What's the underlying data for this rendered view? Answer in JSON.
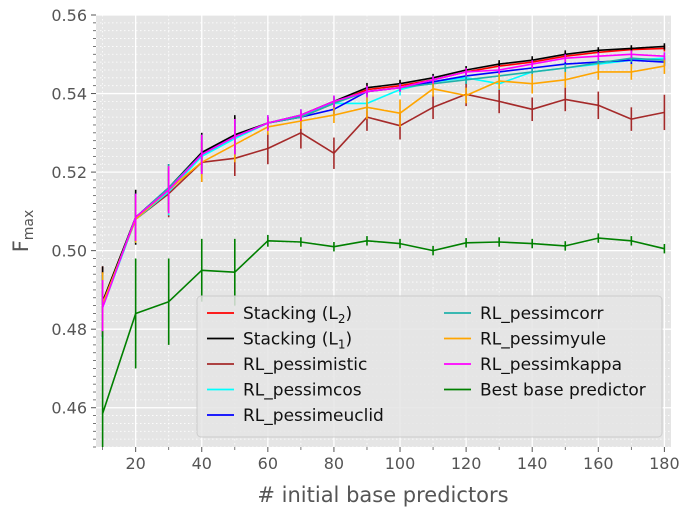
{
  "chart_data": {
    "type": "line",
    "xlabel": "# initial base predictors",
    "ylabel_main": "F",
    "ylabel_sub": "max",
    "xlim": [
      8,
      182
    ],
    "ylim": [
      0.45,
      0.56
    ],
    "xticks": [
      20,
      40,
      60,
      80,
      100,
      120,
      140,
      160,
      180
    ],
    "yticks": [
      0.46,
      0.48,
      0.5,
      0.52,
      0.54,
      0.56
    ],
    "ytick_labels": [
      "0.46",
      "0.48",
      "0.50",
      "0.52",
      "0.54",
      "0.56"
    ],
    "grid": true,
    "legend_position": "lower-right",
    "legend_columns": 2,
    "x": [
      10,
      20,
      30,
      40,
      50,
      60,
      70,
      80,
      90,
      100,
      110,
      120,
      130,
      140,
      150,
      160,
      170,
      180
    ],
    "series": [
      {
        "name": "Stacking (L",
        "name_sub": "2",
        "name_tail": ")",
        "color": "#ff0000",
        "values": [
          0.487,
          0.5085,
          0.5155,
          0.5245,
          0.529,
          0.5325,
          0.534,
          0.5375,
          0.541,
          0.542,
          0.5435,
          0.5455,
          0.547,
          0.548,
          0.5495,
          0.5505,
          0.5512,
          0.5515
        ],
        "errors": [
          0.009,
          0.006,
          0.0055,
          0.005,
          0.005,
          0.0015,
          0.0012,
          0.0012,
          0.0012,
          0.001,
          0.001,
          0.001,
          0.001,
          0.001,
          0.001,
          0.0008,
          0.0008,
          0.0008
        ]
      },
      {
        "name": "Stacking (L",
        "name_sub": "1",
        "name_tail": ")",
        "color": "#000000",
        "values": [
          0.487,
          0.5085,
          0.516,
          0.525,
          0.5295,
          0.5325,
          0.5345,
          0.538,
          0.5415,
          0.5425,
          0.544,
          0.546,
          0.5475,
          0.5485,
          0.55,
          0.551,
          0.5515,
          0.552
        ],
        "errors": [
          0.009,
          0.007,
          0.006,
          0.005,
          0.005,
          0.0015,
          0.0012,
          0.0012,
          0.0012,
          0.001,
          0.001,
          0.001,
          0.001,
          0.001,
          0.001,
          0.0008,
          0.0008,
          0.0008
        ]
      },
      {
        "name": "RL_pessimistic",
        "color": "#a52a2a",
        "values": [
          0.486,
          0.508,
          0.5145,
          0.5225,
          0.5235,
          0.526,
          0.53,
          0.5248,
          0.534,
          0.5318,
          0.5365,
          0.5398,
          0.538,
          0.536,
          0.5385,
          0.537,
          0.5335,
          0.5352
        ],
        "errors": [
          0.008,
          0.006,
          0.006,
          0.005,
          0.0045,
          0.004,
          0.004,
          0.004,
          0.0035,
          0.0035,
          0.003,
          0.003,
          0.003,
          0.003,
          0.003,
          0.0035,
          0.003,
          0.0045
        ]
      },
      {
        "name": "RL_pessimcos",
        "color": "#00ffff",
        "values": [
          0.4855,
          0.508,
          0.515,
          0.524,
          0.5285,
          0.5325,
          0.5345,
          0.5375,
          0.5375,
          0.541,
          0.543,
          0.544,
          0.5425,
          0.5455,
          0.5465,
          0.5475,
          0.5485,
          0.549
        ],
        "errors": [
          0.008,
          0.006,
          0.006,
          0.005,
          0.0045,
          0.002,
          0.0015,
          0.002,
          0.002,
          0.0015,
          0.0015,
          0.0015,
          0.0015,
          0.0015,
          0.0015,
          0.0015,
          0.0015,
          0.0015
        ]
      },
      {
        "name": "RL_pessimeuclid",
        "color": "#0000ff",
        "values": [
          0.486,
          0.5085,
          0.516,
          0.5245,
          0.529,
          0.5325,
          0.534,
          0.536,
          0.5405,
          0.5415,
          0.543,
          0.5445,
          0.5455,
          0.5465,
          0.5475,
          0.548,
          0.5485,
          0.548
        ],
        "errors": [
          0.008,
          0.006,
          0.006,
          0.005,
          0.0045,
          0.0015,
          0.0012,
          0.0012,
          0.0012,
          0.001,
          0.001,
          0.001,
          0.001,
          0.001,
          0.001,
          0.001,
          0.001,
          0.001
        ]
      },
      {
        "name": "RL_pessimcorr",
        "color": "#20b2aa",
        "values": [
          0.486,
          0.5085,
          0.516,
          0.5245,
          0.529,
          0.5325,
          0.534,
          0.5375,
          0.5405,
          0.5415,
          0.5425,
          0.5435,
          0.5445,
          0.5455,
          0.5465,
          0.5478,
          0.549,
          0.5485
        ],
        "errors": [
          0.008,
          0.006,
          0.006,
          0.005,
          0.0045,
          0.0015,
          0.0012,
          0.0012,
          0.0012,
          0.001,
          0.001,
          0.001,
          0.001,
          0.001,
          0.001,
          0.001,
          0.001,
          0.001
        ]
      },
      {
        "name": "RL_pessimyule",
        "color": "#ffa500",
        "values": [
          0.4865,
          0.508,
          0.5155,
          0.5225,
          0.527,
          0.5315,
          0.533,
          0.5345,
          0.5365,
          0.535,
          0.5412,
          0.5395,
          0.5432,
          0.5425,
          0.5435,
          0.5455,
          0.5455,
          0.547
        ],
        "errors": [
          0.008,
          0.006,
          0.006,
          0.005,
          0.0045,
          0.002,
          0.002,
          0.002,
          0.003,
          0.0035,
          0.002,
          0.002,
          0.002,
          0.0025,
          0.002,
          0.002,
          0.002,
          0.002
        ]
      },
      {
        "name": "RL_pessimkappa",
        "color": "#ff00ff",
        "values": [
          0.4855,
          0.5085,
          0.5155,
          0.5245,
          0.529,
          0.5325,
          0.5345,
          0.538,
          0.5405,
          0.5415,
          0.5435,
          0.5455,
          0.546,
          0.5475,
          0.549,
          0.5495,
          0.55,
          0.5495
        ],
        "errors": [
          0.007,
          0.006,
          0.006,
          0.005,
          0.0045,
          0.002,
          0.0015,
          0.0015,
          0.0015,
          0.001,
          0.001,
          0.001,
          0.001,
          0.001,
          0.001,
          0.001,
          0.001,
          0.001
        ]
      },
      {
        "name": "Best base predictor",
        "color": "#008000",
        "values": [
          0.4585,
          0.484,
          0.487,
          0.495,
          0.4945,
          0.5025,
          0.5022,
          0.501,
          0.5025,
          0.5018,
          0.5,
          0.502,
          0.5022,
          0.5018,
          0.5012,
          0.5032,
          0.5025,
          0.5005
        ],
        "errors": [
          0.021,
          0.014,
          0.011,
          0.008,
          0.0085,
          0.0015,
          0.0012,
          0.0012,
          0.0012,
          0.0012,
          0.0012,
          0.0012,
          0.0012,
          0.0012,
          0.0012,
          0.0012,
          0.0012,
          0.0012
        ]
      }
    ]
  }
}
